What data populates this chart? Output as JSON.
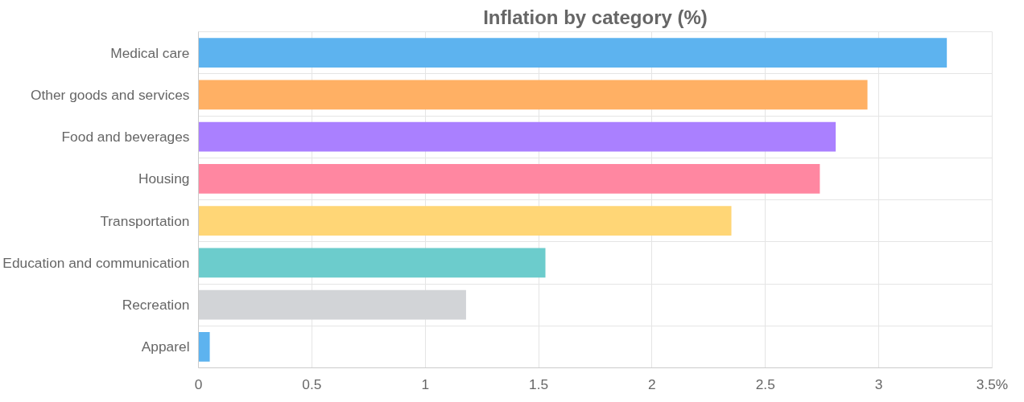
{
  "chart_data": {
    "type": "bar",
    "orientation": "horizontal",
    "title": "Inflation by category (%)",
    "categories": [
      "Medical care",
      "Other goods and services",
      "Food and beverages",
      "Housing",
      "Transportation",
      "Education and communication",
      "Recreation",
      "Apparel"
    ],
    "values": [
      3.3,
      2.95,
      2.81,
      2.74,
      2.35,
      1.53,
      1.18,
      0.05
    ],
    "colors": [
      "#5db3ef",
      "#ffb064",
      "#aa80ff",
      "#ff87a1",
      "#ffd676",
      "#6ccccc",
      "#d2d4d7",
      "#5db3ef"
    ],
    "xlim": [
      0,
      3.5
    ],
    "xticks": [
      0,
      0.5,
      1,
      1.5,
      2,
      2.5,
      3,
      {
        "value": 3.5,
        "label": "3.5%"
      }
    ],
    "grid": true
  }
}
